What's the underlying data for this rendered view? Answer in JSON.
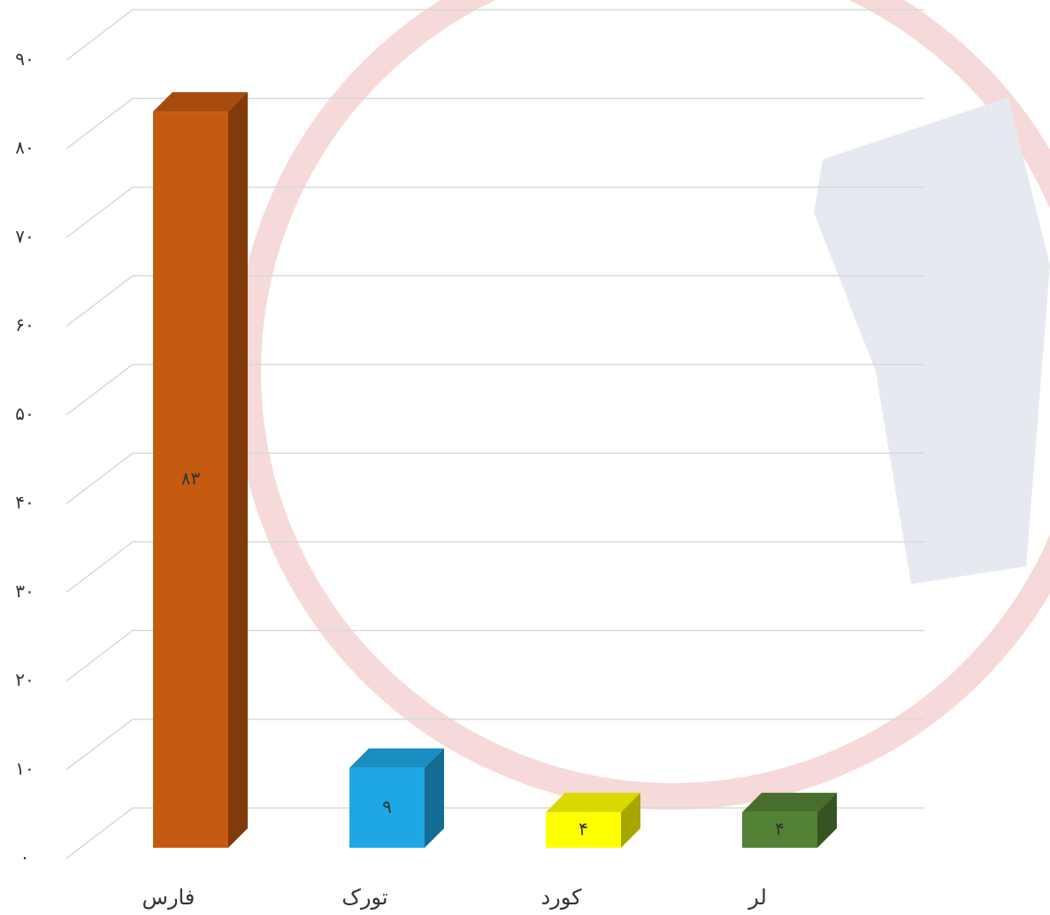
{
  "chart_data": {
    "type": "bar",
    "categories": [
      "فارس",
      "تورک",
      "کورد",
      "لر"
    ],
    "values": [
      83,
      9,
      4,
      4
    ],
    "value_labels": [
      "۸۳",
      "۹",
      "۴",
      "۴"
    ],
    "colors": [
      "#c55a11",
      "#1ea7e4",
      "#ffff00",
      "#548235"
    ],
    "ylim": [
      0,
      90
    ],
    "yticks": [
      {
        "value": 0,
        "label": "۰"
      },
      {
        "value": 10,
        "label": "۱۰"
      },
      {
        "value": 20,
        "label": "۲۰"
      },
      {
        "value": 30,
        "label": "۳۰"
      },
      {
        "value": 40,
        "label": "۴۰"
      },
      {
        "value": 50,
        "label": "۵۰"
      },
      {
        "value": 60,
        "label": "۶۰"
      },
      {
        "value": 70,
        "label": "۷۰"
      },
      {
        "value": 80,
        "label": "۸۰"
      },
      {
        "value": 90,
        "label": "۹۰"
      }
    ],
    "grid": true
  }
}
